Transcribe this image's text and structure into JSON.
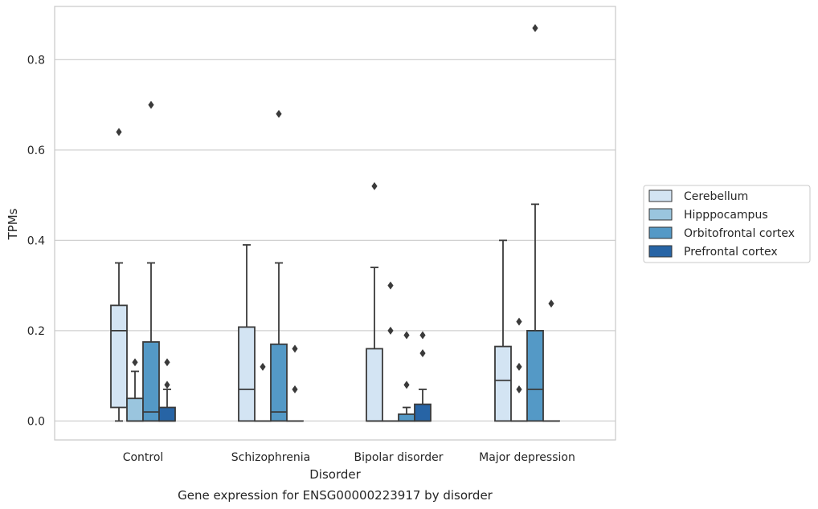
{
  "chart_data": {
    "type": "box",
    "title": "",
    "caption": "Gene expression for ENSG00000223917 by disorder",
    "xlabel": "Disorder",
    "ylabel": "TPMs",
    "ylim": [
      -0.042,
      0.918
    ],
    "yticks": [
      0.0,
      0.2,
      0.4,
      0.6,
      0.8
    ],
    "ytick_labels": [
      "0.0",
      "0.2",
      "0.4",
      "0.6",
      "0.8"
    ],
    "grid": "horizontal",
    "categories": [
      "Control",
      "Schizophrenia",
      "Bipolar disorder",
      "Major depression"
    ],
    "legend_position": "right",
    "series": [
      {
        "name": "Cerebellum",
        "color": "#d3e4f3",
        "boxes": [
          {
            "whislo": 0.0,
            "q1": 0.03,
            "med": 0.2,
            "q3": 0.256,
            "whishi": 0.35,
            "fliers": [
              0.64
            ]
          },
          {
            "whislo": 0.0,
            "q1": 0.0,
            "med": 0.07,
            "q3": 0.208,
            "whishi": 0.39,
            "fliers": []
          },
          {
            "whislo": 0.0,
            "q1": 0.0,
            "med": 0.0,
            "q3": 0.16,
            "whishi": 0.34,
            "fliers": [
              0.52
            ]
          },
          {
            "whislo": 0.0,
            "q1": 0.0,
            "med": 0.09,
            "q3": 0.165,
            "whishi": 0.4,
            "fliers": []
          }
        ]
      },
      {
        "name": "Hipppocampus",
        "color": "#9ac5de",
        "boxes": [
          {
            "whislo": 0.0,
            "q1": 0.0,
            "med": 0.0,
            "q3": 0.05,
            "whishi": 0.11,
            "fliers": [
              0.13
            ]
          },
          {
            "whislo": 0.0,
            "q1": 0.0,
            "med": 0.0,
            "q3": 0.0,
            "whishi": 0.0,
            "fliers": [
              0.12
            ]
          },
          {
            "whislo": 0.0,
            "q1": 0.0,
            "med": 0.0,
            "q3": 0.0,
            "whishi": 0.0,
            "fliers": [
              0.2,
              0.3
            ]
          },
          {
            "whislo": 0.0,
            "q1": 0.0,
            "med": 0.0,
            "q3": 0.0,
            "whishi": 0.0,
            "fliers": [
              0.07,
              0.12,
              0.22
            ]
          }
        ]
      },
      {
        "name": "Orbitofrontal cortex",
        "color": "#5499c6",
        "boxes": [
          {
            "whislo": 0.0,
            "q1": 0.0,
            "med": 0.02,
            "q3": 0.175,
            "whishi": 0.35,
            "fliers": [
              0.7
            ]
          },
          {
            "whislo": 0.0,
            "q1": 0.0,
            "med": 0.02,
            "q3": 0.17,
            "whishi": 0.35,
            "fliers": [
              0.68
            ]
          },
          {
            "whislo": 0.0,
            "q1": 0.0,
            "med": 0.0,
            "q3": 0.015,
            "whishi": 0.03,
            "fliers": [
              0.08,
              0.19
            ]
          },
          {
            "whislo": 0.0,
            "q1": 0.0,
            "med": 0.07,
            "q3": 0.2,
            "whishi": 0.48,
            "fliers": [
              0.87
            ]
          }
        ]
      },
      {
        "name": "Prefrontal cortex",
        "color": "#2764a5",
        "boxes": [
          {
            "whislo": 0.0,
            "q1": 0.0,
            "med": 0.0,
            "q3": 0.03,
            "whishi": 0.07,
            "fliers": [
              0.08,
              0.13
            ]
          },
          {
            "whislo": 0.0,
            "q1": 0.0,
            "med": 0.0,
            "q3": 0.0,
            "whishi": 0.0,
            "fliers": [
              0.07,
              0.16
            ]
          },
          {
            "whislo": 0.0,
            "q1": 0.0,
            "med": 0.0,
            "q3": 0.037,
            "whishi": 0.07,
            "fliers": [
              0.15,
              0.19
            ]
          },
          {
            "whislo": 0.0,
            "q1": 0.0,
            "med": 0.0,
            "q3": 0.0,
            "whishi": 0.0,
            "fliers": [
              0.26
            ]
          }
        ]
      }
    ]
  },
  "style": {
    "line_color": "#3a3a3a",
    "grid_color": "#d0d0d0",
    "frame_color": "#c8c8c8"
  }
}
